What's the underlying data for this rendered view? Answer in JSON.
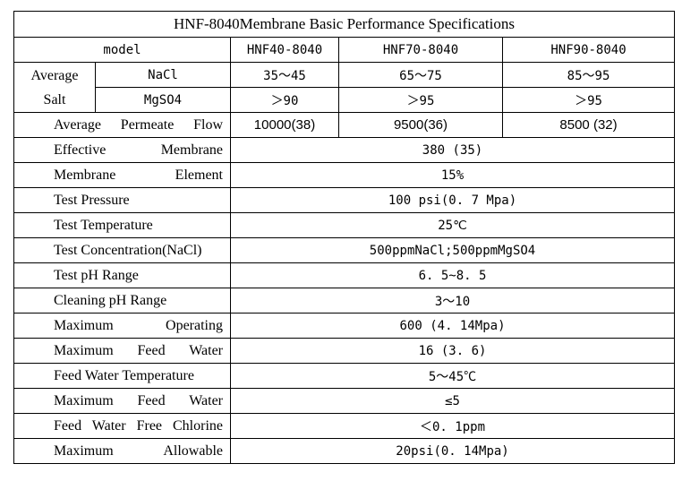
{
  "title": "HNF-8040Membrane Basic Performance Specifications",
  "header": {
    "model_label": "model",
    "models": [
      "HNF40-8040",
      "HNF70-8040",
      "HNF90-8040"
    ]
  },
  "salt": {
    "group_label_1": "Average",
    "group_label_2": "Salt",
    "nacl_label": "NaCl",
    "nacl_values": [
      "35～45",
      "65～75",
      "85～95"
    ],
    "mgso4_label": "MgSO4",
    "mgso4_values": [
      "＞90",
      "＞95",
      "＞95"
    ]
  },
  "flow": {
    "label": "Average Permeate Flow",
    "values": [
      "10000(38)",
      "9500(36)",
      "8500 (32)"
    ]
  },
  "rows": [
    {
      "label": "Effective Membrane",
      "value": "380 (35)",
      "justify": true
    },
    {
      "label": "Membrane Element",
      "value": "15%",
      "justify": true
    },
    {
      "label": "Test Pressure",
      "value": "100 psi(0. 7 Mpa)",
      "justify": false
    },
    {
      "label": "Test Temperature",
      "value": "25℃",
      "justify": false
    },
    {
      "label": "Test Concentration(NaCl)",
      "value": "500ppmNaCl;500ppmMgSO4",
      "justify": false
    },
    {
      "label": "Test pH Range",
      "value": "6. 5~8. 5",
      "justify": false
    },
    {
      "label": "Cleaning pH Range",
      "value": "3～10",
      "justify": false
    },
    {
      "label": "Maximum Operating",
      "value": "600 (4. 14Mpa)",
      "justify": true
    },
    {
      "label": "Maximum Feed Water",
      "value": "16 (3. 6)",
      "justify": true
    },
    {
      "label": "Feed Water Temperature",
      "value": "5～45℃",
      "justify": false
    },
    {
      "label": "Maximum Feed Water",
      "value": "≤5",
      "justify": true
    },
    {
      "label": "Feed Water Free Chlorine",
      "value": "＜0. 1ppm",
      "justify": true
    },
    {
      "label": "Maximum Allowable",
      "value": "20psi(0. 14Mpa)",
      "justify": true
    }
  ]
}
